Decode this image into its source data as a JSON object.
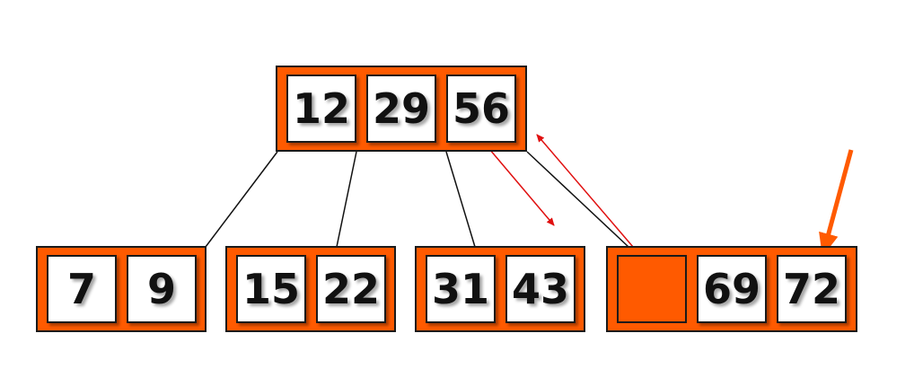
{
  "root": {
    "keys": [
      "12",
      "29",
      "56"
    ]
  },
  "leaves": [
    {
      "keys": [
        "7",
        "9"
      ]
    },
    {
      "keys": [
        "15",
        "22"
      ]
    },
    {
      "keys": [
        "31",
        "43"
      ]
    },
    {
      "keys": [
        "",
        "69",
        "72"
      ]
    }
  ],
  "colors": {
    "node_fill": "#ff5a00",
    "border": "#1a1a1a",
    "key_fill": "#ffffff",
    "pointer_arrow": "#e01010",
    "insert_arrow": "#ff5a00"
  }
}
